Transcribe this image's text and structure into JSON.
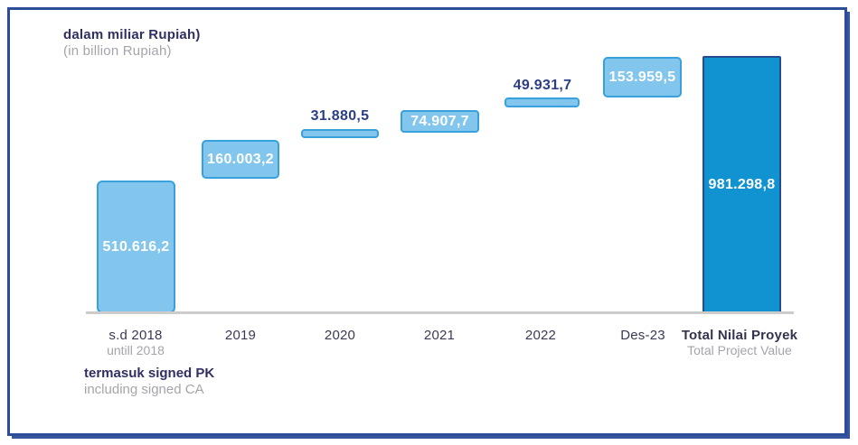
{
  "chart_data": {
    "type": "bar",
    "subtype": "waterfall",
    "title": "dalam miliar Rupiah)",
    "subtitle": "(in billion Rupiah)",
    "categories": [
      "s.d 2018",
      "2019",
      "2020",
      "2021",
      "2022",
      "Des-23",
      "Total Nilai Proyek"
    ],
    "category_sublabels": [
      "untill 2018",
      "",
      "",
      "",
      "",
      "",
      "Total Project Value"
    ],
    "values": [
      510616.2,
      160003.2,
      31880.5,
      74907.7,
      49931.7,
      153959.5,
      981298.8
    ],
    "value_labels": [
      "510.616,2",
      "160.003,2",
      "31.880,5",
      "74.907,7",
      "49.931,7",
      "153.959,5",
      "981.298,8"
    ],
    "footnote": "termasuk signed PK",
    "footnote_sub": "including signed CA",
    "legend": "none",
    "grid": false,
    "colors": {
      "increment_bar_fill": "#82c6ee",
      "increment_bar_border": "#38a1dc",
      "total_bar_fill": "#1192d1",
      "total_bar_border": "#274b8f",
      "bar_value_text": "#ffffff",
      "floating_value_text": "#2c3e87",
      "title_text": "#2f3061",
      "muted_text": "#a4a4ac",
      "axis_line": "#cccccc",
      "frame_border": "#2d4d99"
    }
  }
}
